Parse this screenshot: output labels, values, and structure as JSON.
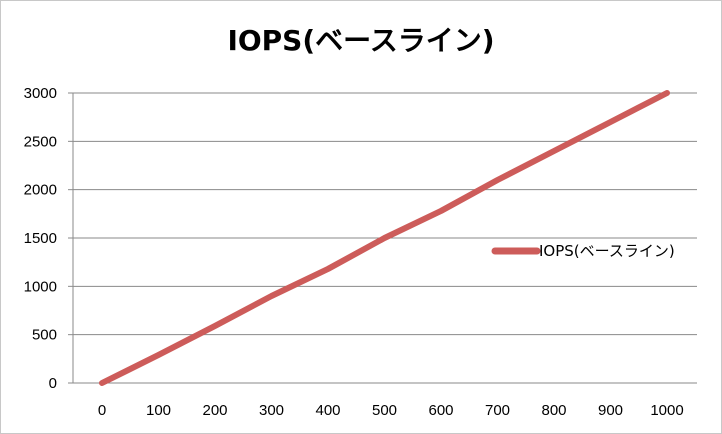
{
  "chart_data": {
    "type": "line",
    "title": "IOPS(ベースライン)",
    "xlabel": "",
    "ylabel": "",
    "x": [
      0,
      100,
      200,
      300,
      400,
      500,
      600,
      700,
      800,
      900,
      1000
    ],
    "x_ticks": [
      "0",
      "100",
      "200",
      "300",
      "400",
      "500",
      "600",
      "700",
      "800",
      "900",
      "1000"
    ],
    "y_ticks": [
      "0",
      "500",
      "1000",
      "1500",
      "2000",
      "2500",
      "3000"
    ],
    "ylim": [
      0,
      3000
    ],
    "grid": true,
    "legend_position": "right",
    "series": [
      {
        "name": "IOPS(ベースライン)",
        "color": "#cd5c5a",
        "values": [
          0,
          290,
          590,
          900,
          1180,
          1500,
          1780,
          2100,
          2400,
          2700,
          3000
        ]
      }
    ]
  }
}
